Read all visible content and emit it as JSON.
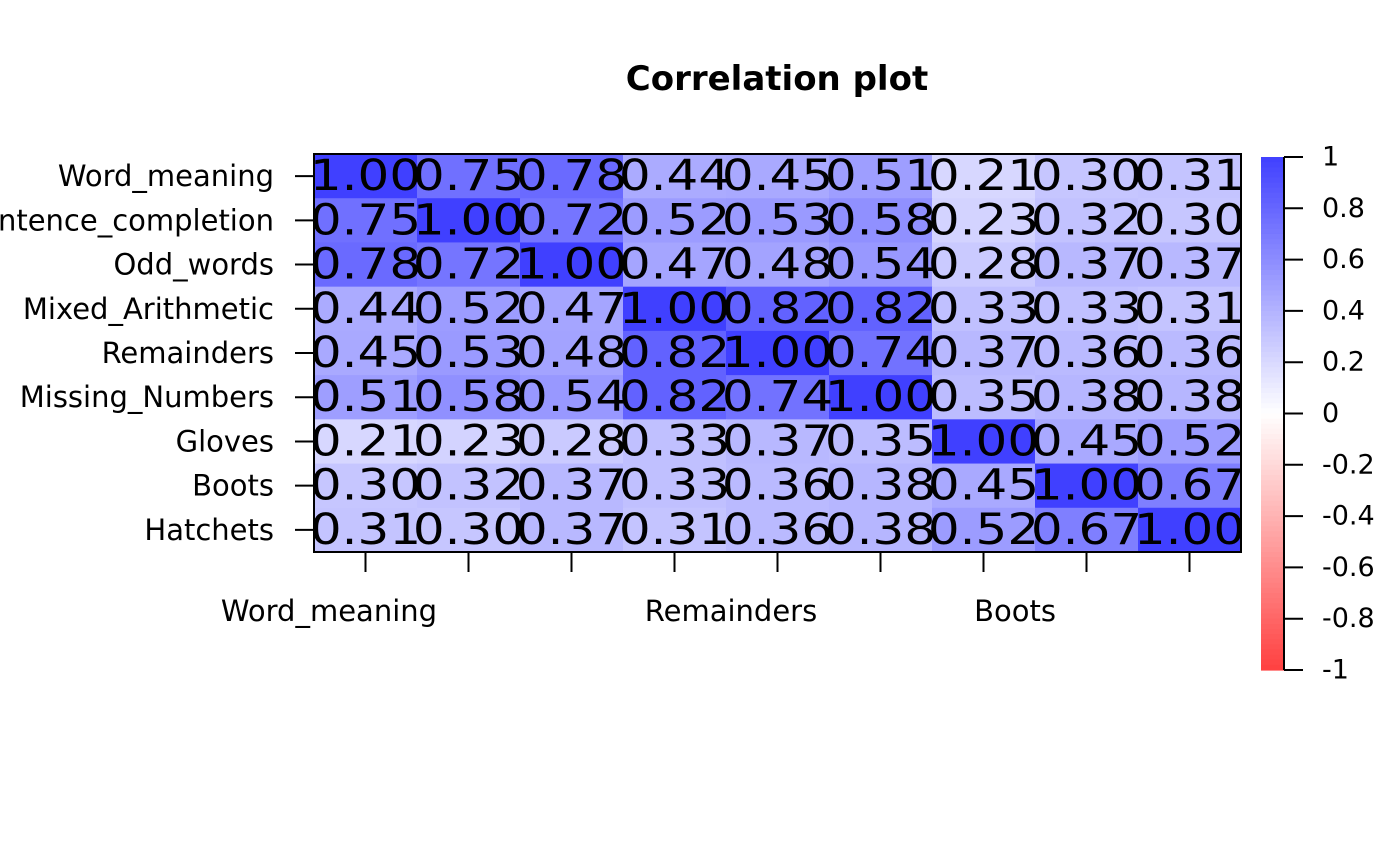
{
  "chart_data": {
    "type": "heatmap",
    "title": "Correlation plot",
    "row_labels": [
      "Word_meaning",
      "Sentence_completion",
      "Odd_words",
      "Mixed_Arithmetic",
      "Remainders",
      "Missing_Numbers",
      "Gloves",
      "Boots",
      "Hatchets"
    ],
    "col_tick_labels": [
      "Word_meaning",
      "Remainders",
      "Boots"
    ],
    "values": [
      [
        1.0,
        0.75,
        0.78,
        0.44,
        0.45,
        0.51,
        0.21,
        0.3,
        0.31
      ],
      [
        0.75,
        1.0,
        0.72,
        0.52,
        0.53,
        0.58,
        0.23,
        0.32,
        0.3
      ],
      [
        0.78,
        0.72,
        1.0,
        0.47,
        0.48,
        0.54,
        0.28,
        0.37,
        0.37
      ],
      [
        0.44,
        0.52,
        0.47,
        1.0,
        0.82,
        0.82,
        0.33,
        0.33,
        0.31
      ],
      [
        0.45,
        0.53,
        0.48,
        0.82,
        1.0,
        0.74,
        0.37,
        0.36,
        0.36
      ],
      [
        0.51,
        0.58,
        0.54,
        0.82,
        0.74,
        1.0,
        0.35,
        0.38,
        0.38
      ],
      [
        0.21,
        0.23,
        0.28,
        0.33,
        0.37,
        0.35,
        1.0,
        0.45,
        0.52
      ],
      [
        0.3,
        0.32,
        0.37,
        0.33,
        0.36,
        0.38,
        0.45,
        1.0,
        0.67
      ],
      [
        0.31,
        0.3,
        0.37,
        0.31,
        0.36,
        0.38,
        0.52,
        0.67,
        1.0
      ]
    ],
    "value_labels": [
      [
        "1.00",
        "0.75",
        "0.78",
        "0.44",
        "0.45",
        "0.51",
        "0.21",
        "0.30",
        "0.31"
      ],
      [
        "0.75",
        "1.00",
        "0.72",
        "0.52",
        "0.53",
        "0.58",
        "0.23",
        "0.32",
        "0.30"
      ],
      [
        "0.78",
        "0.72",
        "1.00",
        "0.47",
        "0.48",
        "0.54",
        "0.28",
        "0.37",
        "0.37"
      ],
      [
        "0.44",
        "0.52",
        "0.47",
        "1.00",
        "0.82",
        "0.82",
        "0.33",
        "0.33",
        "0.31"
      ],
      [
        "0.45",
        "0.53",
        "0.48",
        "0.82",
        "1.00",
        "0.74",
        "0.37",
        "0.36",
        "0.36"
      ],
      [
        "0.51",
        "0.58",
        "0.54",
        "0.82",
        "0.74",
        "1.00",
        "0.35",
        "0.38",
        "0.38"
      ],
      [
        "0.21",
        "0.23",
        "0.28",
        "0.33",
        "0.37",
        "0.35",
        "1.00",
        "0.45",
        "0.52"
      ],
      [
        "0.30",
        "0.32",
        "0.37",
        "0.33",
        "0.36",
        "0.38",
        "0.45",
        "1.00",
        "0.67"
      ],
      [
        "0.31",
        "0.30",
        "0.37",
        "0.31",
        "0.36",
        "0.38",
        "0.52",
        "0.67",
        "1.00"
      ]
    ],
    "color_scale": {
      "min": -1,
      "max": 1,
      "low_color": "#ff4040",
      "mid_color": "#ffffff",
      "high_color": "#4040ff"
    },
    "legend": {
      "position": "right",
      "tick_labels": [
        "1",
        "0.8",
        "0.6",
        "0.4",
        "0.2",
        "0",
        "-0.2",
        "-0.4",
        "-0.6",
        "-0.8",
        "-1"
      ],
      "tick_values": [
        1,
        0.8,
        0.6,
        0.4,
        0.2,
        0,
        -0.2,
        -0.4,
        -0.6,
        -0.8,
        -1
      ]
    }
  }
}
